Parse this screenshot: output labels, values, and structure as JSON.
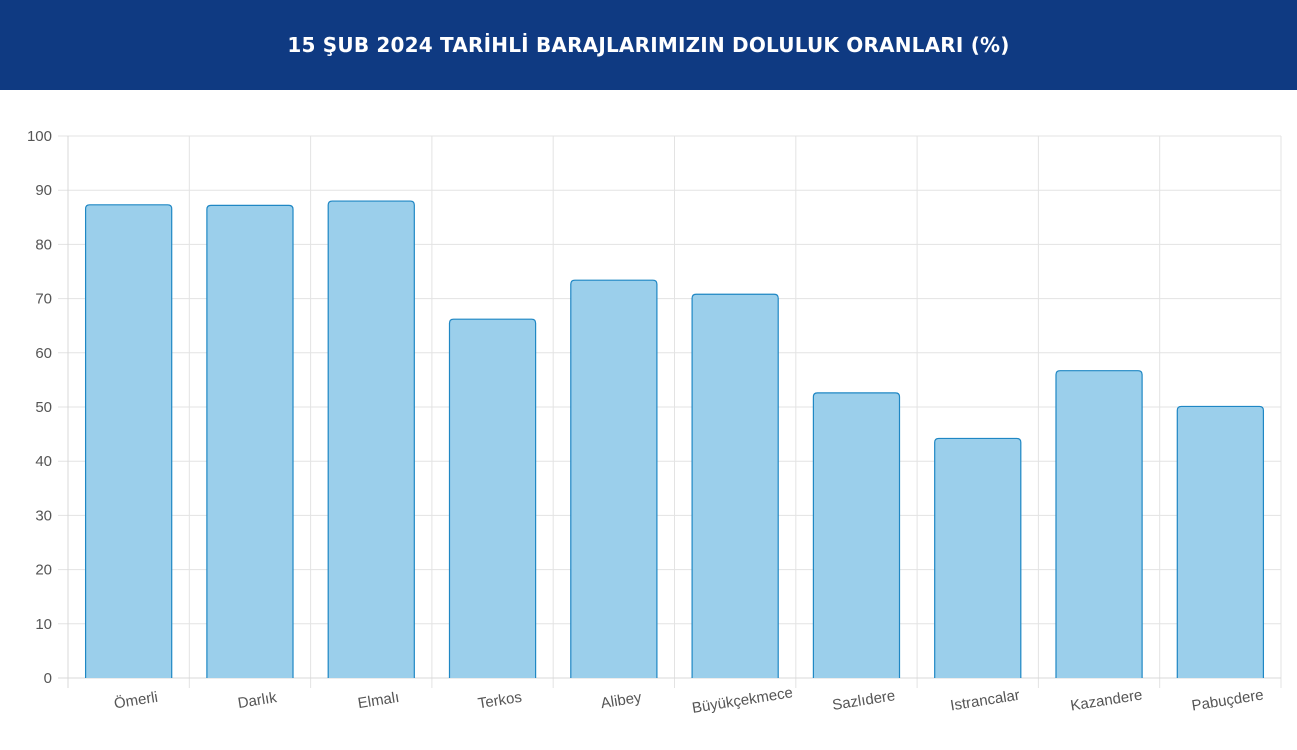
{
  "header": {
    "title": "15 ŞUB 2024 TARİHLİ BARAJLARIMIZIN DOLULUK ORANLARI (%)",
    "background": "#0f3a82"
  },
  "chart_data": {
    "type": "bar",
    "title": "15 ŞUB 2024 TARİHLİ BARAJLARIMIZIN DOLULUK ORANLARI (%)",
    "xlabel": "",
    "ylabel": "",
    "categories": [
      "Ömerli",
      "Darlık",
      "Elmalı",
      "Terkos",
      "Alibey",
      "Büyükçekmece",
      "Sazlıdere",
      "Istrancalar",
      "Kazandere",
      "Pabuçdere"
    ],
    "values": [
      87.3,
      87.2,
      88.0,
      66.2,
      73.4,
      70.8,
      52.6,
      44.2,
      56.7,
      50.1
    ],
    "ylim": [
      0,
      100
    ],
    "yticks": [
      0,
      10,
      20,
      30,
      40,
      50,
      60,
      70,
      80,
      90,
      100
    ],
    "grid": true,
    "legend": "none",
    "colors": {
      "bar_fill": "#9bcfeb",
      "bar_border": "#1f87c4"
    }
  }
}
